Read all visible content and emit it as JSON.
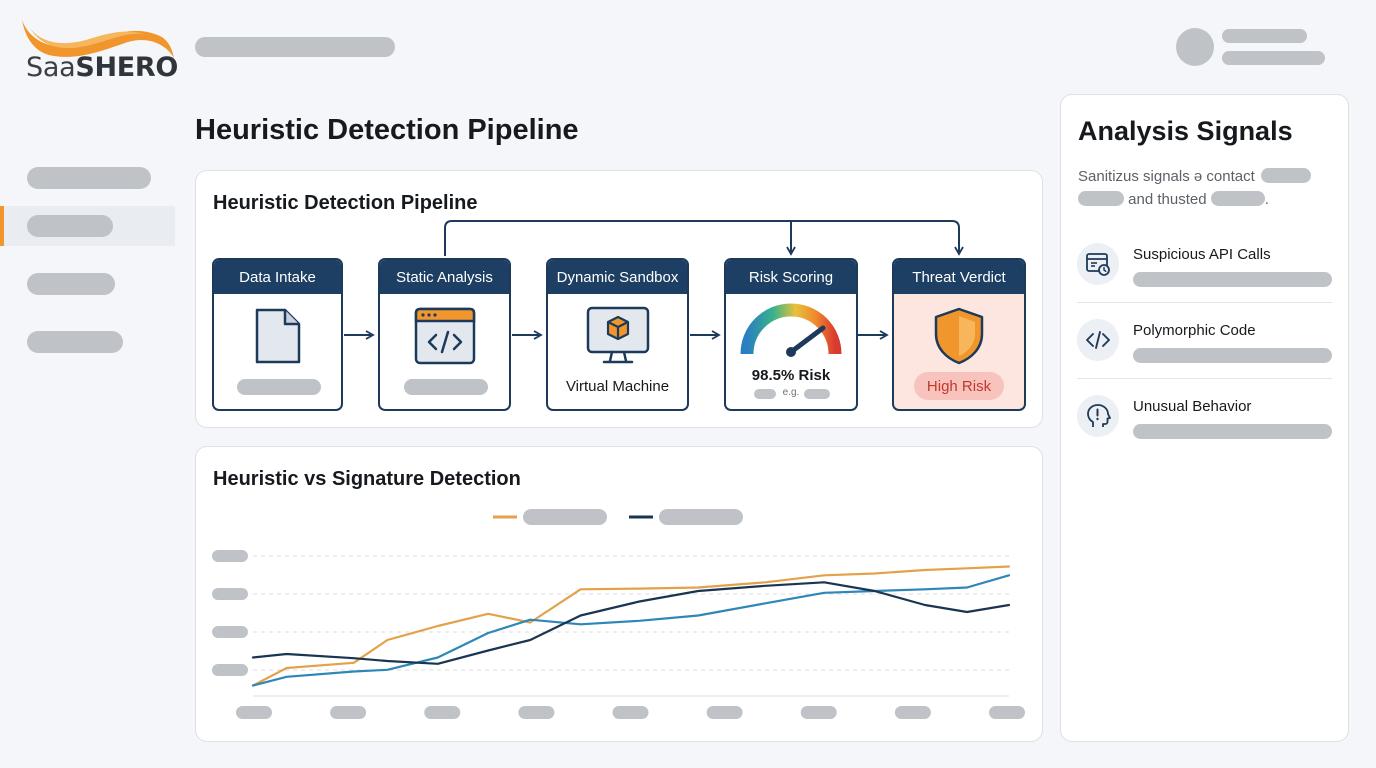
{
  "brand": {
    "logo_text_light": "Saa",
    "logo_text_bold": "SHERO"
  },
  "page": {
    "title": "Heuristic Detection Pipeline"
  },
  "pipeline": {
    "title": "Heuristic Detection Pipeline",
    "stages": [
      {
        "name": "Data Intake",
        "icon": "document-icon"
      },
      {
        "name": "Static Analysis",
        "icon": "code-window-icon"
      },
      {
        "name": "Dynamic Sandbox",
        "icon": "virtual-machine-icon",
        "caption": "Virtual Machine"
      },
      {
        "name": "Risk Scoring",
        "icon": "gauge-icon",
        "score": "98.5% Risk",
        "note": "e.g."
      },
      {
        "name": "Threat Verdict",
        "icon": "shield-icon",
        "verdict": "High Risk"
      }
    ]
  },
  "chart": {
    "title": "Heuristic vs Signature Detection",
    "colors": {
      "orange": "#e3a24a",
      "blue": "#2f86b8",
      "navy": "#1a3552"
    }
  },
  "chart_data": {
    "type": "line",
    "title": "Heuristic vs Signature Detection",
    "categories": [
      "",
      "",
      "",
      "",
      "",
      "",
      "",
      "",
      ""
    ],
    "ylim": [
      0,
      4
    ],
    "grid": true,
    "legend": "top-center",
    "x": [
      0,
      0.4,
      1.2,
      1.6,
      2.2,
      2.8,
      3.3,
      3.9,
      4.6,
      5.3,
      6.1,
      6.8,
      7.4,
      8.0,
      8.5,
      9.0
    ],
    "series": [
      {
        "color": "#e3a24a",
        "values": [
          0.3,
          0.8,
          0.95,
          1.6,
          2.0,
          2.35,
          2.1,
          3.05,
          3.07,
          3.1,
          3.25,
          3.45,
          3.5,
          3.6,
          3.65,
          3.7
        ]
      },
      {
        "color": "#2f86b8",
        "values": [
          0.3,
          0.55,
          0.7,
          0.75,
          1.1,
          1.8,
          2.18,
          2.05,
          2.15,
          2.3,
          2.65,
          2.95,
          3.0,
          3.05,
          3.1,
          3.45
        ]
      },
      {
        "color": "#1a3552",
        "values": [
          1.1,
          1.2,
          1.08,
          1.0,
          0.92,
          1.3,
          1.6,
          2.3,
          2.7,
          3.0,
          3.15,
          3.25,
          3.0,
          2.6,
          2.4,
          2.6
        ]
      }
    ]
  },
  "signals": {
    "title": "Analysis Signals",
    "desc_part1": "Sanitizus signals ə contact",
    "desc_part2": "and thusted",
    "desc_end": ".",
    "items": [
      {
        "label": "Suspicious API Calls",
        "icon": "api-window-icon"
      },
      {
        "label": "Polymorphic Code",
        "icon": "code-icon"
      },
      {
        "label": "Unusual Behavior",
        "icon": "head-alert-icon"
      }
    ]
  }
}
